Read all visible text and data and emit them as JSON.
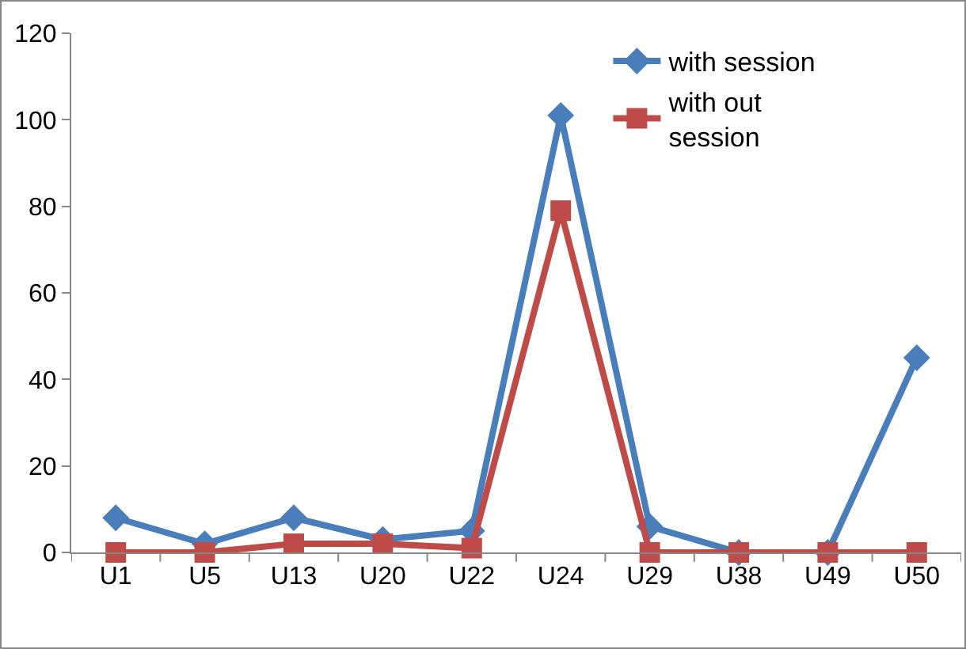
{
  "chart_data": {
    "type": "line",
    "categories": [
      "U1",
      "U5",
      "U13",
      "U20",
      "U22",
      "U24",
      "U29",
      "U38",
      "U49",
      "U50"
    ],
    "series": [
      {
        "name": "with session",
        "color": "#4a7ebb",
        "marker": "diamond",
        "values": [
          8,
          2,
          8,
          3,
          5,
          101,
          6,
          0,
          0,
          45
        ]
      },
      {
        "name": "with out session",
        "color": "#be4b48",
        "marker": "square",
        "values": [
          0,
          0,
          2,
          2,
          1,
          79,
          0,
          0,
          0,
          0
        ]
      }
    ],
    "ylim": [
      0,
      120
    ],
    "yticks": [
      0,
      20,
      40,
      60,
      80,
      100,
      120
    ],
    "grid": false,
    "legend": "top right",
    "line_style": "solid"
  }
}
